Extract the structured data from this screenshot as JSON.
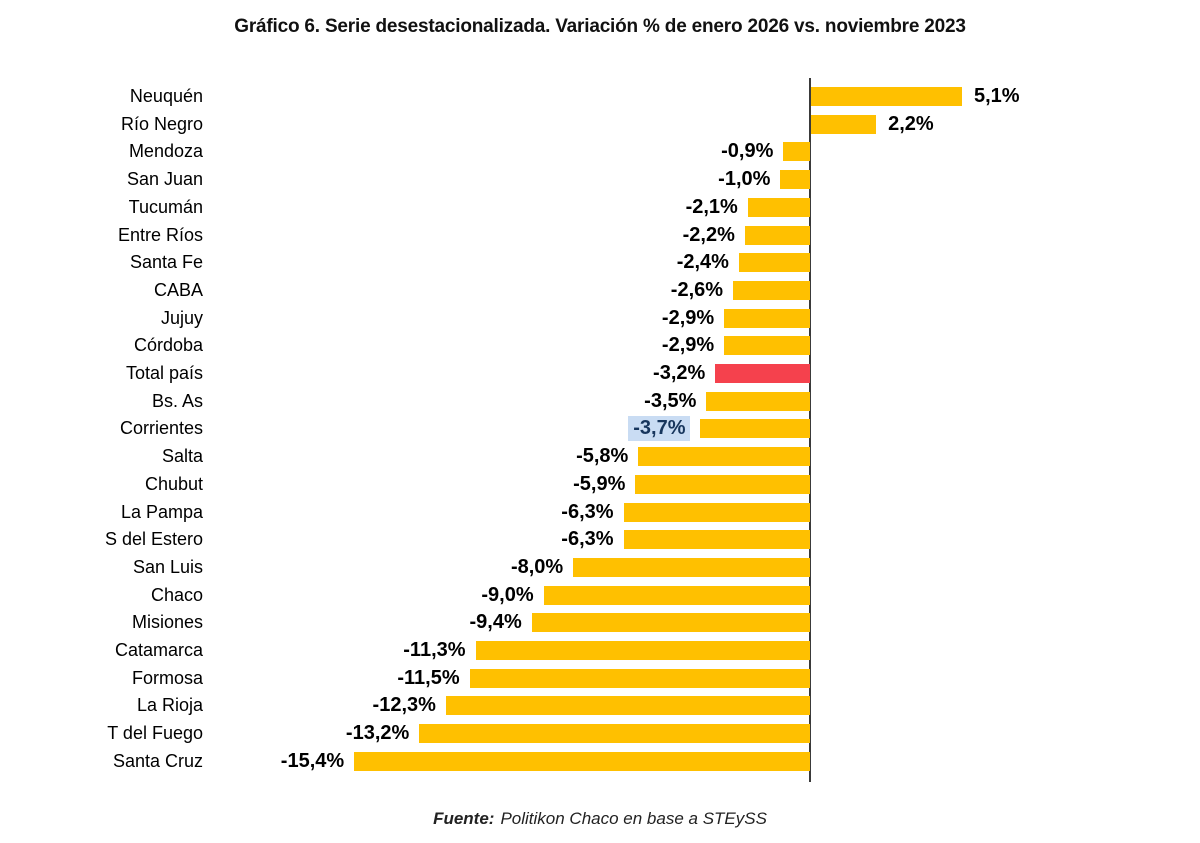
{
  "title": "Gráfico 6. Serie desestacionalizada. Variación % de enero 2026 vs. noviembre 2023",
  "footer": {
    "prefix": "Fuente:",
    "text": "Politikon Chaco en base a STEySS"
  },
  "colors": {
    "bar": "#FFC000",
    "highlighted_bar": "#F5414D",
    "axis": "#3a3a3a",
    "value_text": "#000000",
    "value_highlight_bg": "#C9DCF3",
    "value_highlight_text": "#17365D"
  },
  "chart_data": {
    "type": "bar",
    "orientation": "horizontal",
    "title": "Gráfico 6. Serie desestacionalizada. Variación % de enero 2026 vs. noviembre 2023",
    "xlabel": "",
    "ylabel": "",
    "xlim": [
      -15.4,
      5.1
    ],
    "grid": false,
    "legend": false,
    "unit": "%",
    "decimal_style": "comma",
    "categories": [
      "Neuquén",
      "Río Negro",
      "Mendoza",
      "San Juan",
      "Tucumán",
      "Entre Ríos",
      "Santa Fe",
      "CABA",
      "Jujuy",
      "Córdoba",
      "Total país",
      "Bs. As",
      "Corrientes",
      "Salta",
      "Chubut",
      "La Pampa",
      "S del Estero",
      "San Luis",
      "Chaco",
      "Misiones",
      "Catamarca",
      "Formosa",
      "La Rioja",
      "T del Fuego",
      "Santa Cruz"
    ],
    "values": [
      5.1,
      2.2,
      -0.9,
      -1.0,
      -2.1,
      -2.2,
      -2.4,
      -2.6,
      -2.9,
      -2.9,
      -3.2,
      -3.5,
      -3.7,
      -5.8,
      -5.9,
      -6.3,
      -6.3,
      -8.0,
      -9.0,
      -9.4,
      -11.3,
      -11.5,
      -12.3,
      -13.2,
      -15.4
    ],
    "value_labels": [
      "5,1%",
      "2,2%",
      "-0,9%",
      "-1,0%",
      "-2,1%",
      "-2,2%",
      "-2,4%",
      "-2,6%",
      "-2,9%",
      "-2,9%",
      "-3,2%",
      "-3,5%",
      "-3,7%",
      "-5,8%",
      "-5,9%",
      "-6,3%",
      "-6,3%",
      "-8,0%",
      "-9,0%",
      "-9,4%",
      "-11,3%",
      "-11,5%",
      "-12,3%",
      "-13,2%",
      "-15,4%"
    ],
    "highlighted_category": "Total país",
    "highlighted_value_label_category": "Corrientes",
    "source_note": "Fuente: Politikon Chaco en base a STEySS"
  }
}
